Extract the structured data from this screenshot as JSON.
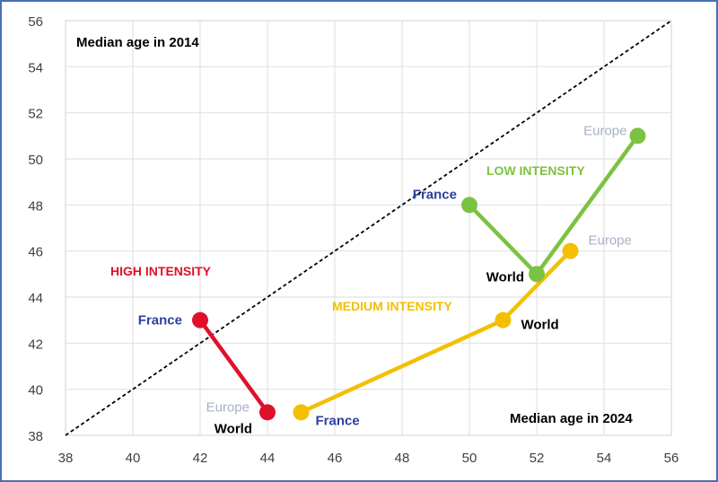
{
  "chart_data": {
    "type": "line",
    "title": "",
    "xlabel": "Median age in 2024",
    "ylabel": "Median age in 2014",
    "xlim": [
      38,
      56
    ],
    "ylim": [
      38,
      56
    ],
    "xticks": [
      "38",
      "40",
      "42",
      "44",
      "46",
      "48",
      "50",
      "52",
      "54",
      "56"
    ],
    "yticks": [
      "38",
      "40",
      "42",
      "44",
      "46",
      "48",
      "50",
      "52",
      "54",
      "56"
    ],
    "grid": true,
    "reference_line": {
      "name": "y = x",
      "style": "dashed",
      "color": "#000000"
    },
    "series": [
      {
        "name": "HIGH INTENSITY",
        "color": "#e0102a",
        "points": [
          {
            "label": "France",
            "x": 42,
            "y": 43
          },
          {
            "label": "Europe",
            "label2": "World",
            "x": 44,
            "y": 39
          }
        ]
      },
      {
        "name": "MEDIUM INTENSITY",
        "color": "#f2c000",
        "points": [
          {
            "label": "France",
            "x": 45,
            "y": 39
          },
          {
            "label": "World",
            "x": 51,
            "y": 43
          },
          {
            "label": "Europe",
            "x": 53,
            "y": 46
          }
        ]
      },
      {
        "name": "LOW INTENSITY",
        "color": "#7cc242",
        "points": [
          {
            "label": "France",
            "x": 50,
            "y": 48
          },
          {
            "label": "World",
            "x": 52,
            "y": 45
          },
          {
            "label": "Europe",
            "x": 55,
            "y": 51
          }
        ]
      }
    ],
    "label_colors": {
      "France": "#2e3f9e",
      "World": "#000000",
      "Europe": "#a8b0c8"
    }
  }
}
